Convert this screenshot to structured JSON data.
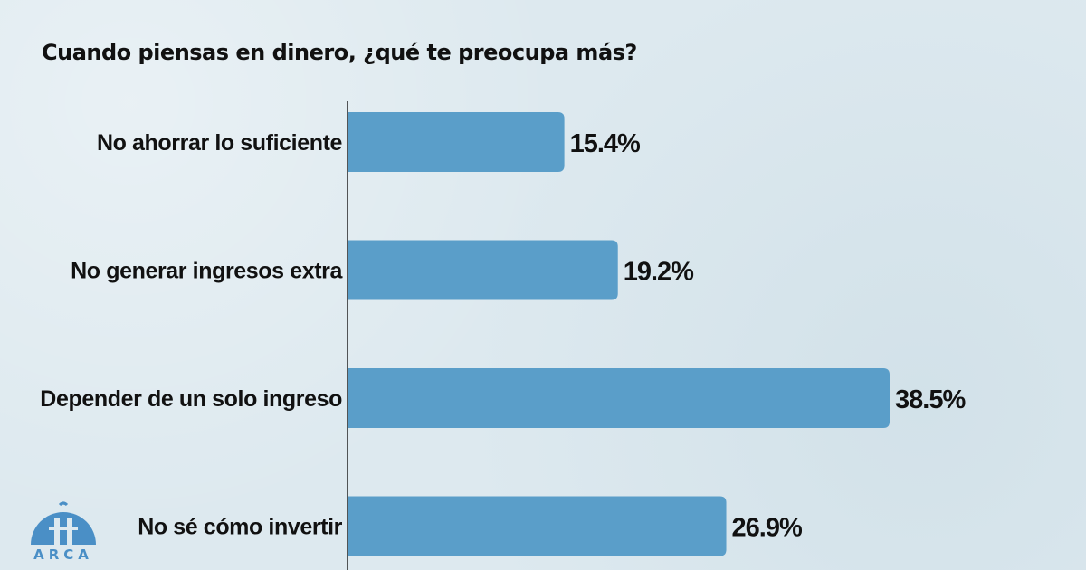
{
  "chart_data": {
    "type": "bar",
    "orientation": "horizontal",
    "title": "Cuando piensas en dinero, ¿qué te preocupa más?",
    "categories": [
      "No ahorrar lo suficiente",
      "No generar ingresos extra",
      "Depender de un solo ingreso",
      "No sé cómo invertir"
    ],
    "values": [
      15.4,
      19.2,
      38.5,
      26.9
    ],
    "value_labels": [
      "15.4%",
      "19.2%",
      "38.5%",
      "26.9%"
    ],
    "xlim": [
      0,
      38.5
    ],
    "grid": false,
    "bar_color": "#5a9ec9",
    "text_color": "#111111"
  },
  "logo": {
    "text": "ARCA",
    "color": "#4a8fc6"
  }
}
